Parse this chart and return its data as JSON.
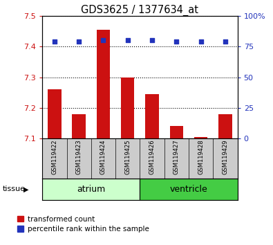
{
  "title": "GDS3625 / 1377634_at",
  "samples": [
    "GSM119422",
    "GSM119423",
    "GSM119424",
    "GSM119425",
    "GSM119426",
    "GSM119427",
    "GSM119428",
    "GSM119429"
  ],
  "transformed_counts": [
    7.26,
    7.18,
    7.455,
    7.3,
    7.245,
    7.14,
    7.105,
    7.18
  ],
  "bar_bottom": 7.1,
  "percentile_ranks": [
    79,
    79,
    80,
    80,
    80,
    79,
    79,
    79
  ],
  "groups": [
    {
      "label": "atrium",
      "start": 0,
      "end": 3
    },
    {
      "label": "ventricle",
      "start": 4,
      "end": 7
    }
  ],
  "ylim": [
    7.1,
    7.5
  ],
  "y2lim": [
    0,
    100
  ],
  "yticks": [
    7.1,
    7.2,
    7.3,
    7.4,
    7.5
  ],
  "y2ticks": [
    0,
    25,
    50,
    75,
    100
  ],
  "y2ticklabels": [
    "0",
    "25",
    "50",
    "75",
    "100%"
  ],
  "bar_color": "#cc1111",
  "dot_color": "#2233bb",
  "tick_color_left": "#cc1111",
  "tick_color_right": "#2233bb",
  "group_bg": "#cccccc",
  "legend_items": [
    "transformed count",
    "percentile rank within the sample"
  ],
  "tissue_label": "tissue",
  "atrium_color": "#ccffcc",
  "ventricle_color": "#44cc44",
  "bar_width": 0.55
}
